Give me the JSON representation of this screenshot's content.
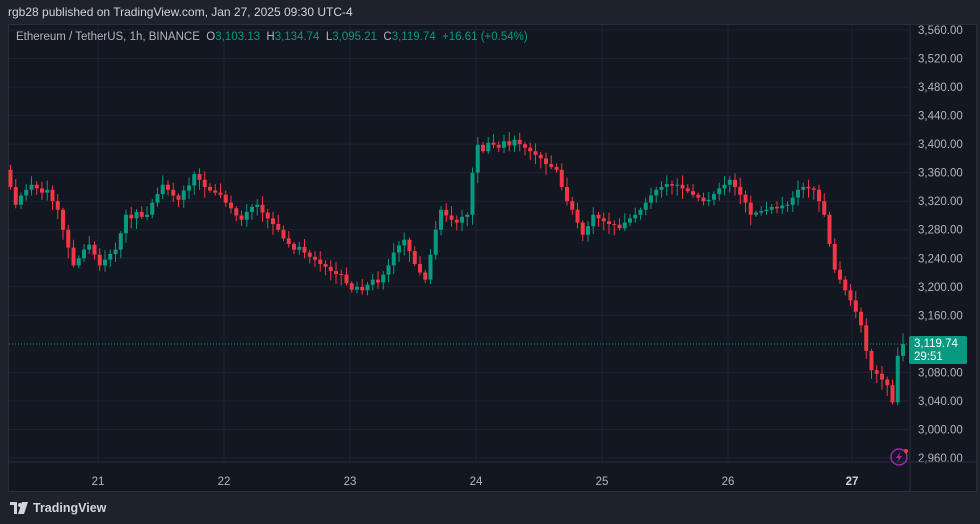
{
  "header": {
    "published": "rgb28 published on TradingView.com, Jan 27, 2025 09:30 UTC-4"
  },
  "legend": {
    "symbol": "Ethereum / TetherUS, 1h, BINANCE",
    "o_label": "O",
    "o": "3,103.13",
    "h_label": "H",
    "h": "3,134.74",
    "l_label": "L",
    "l": "3,095.21",
    "c_label": "C",
    "c": "3,119.74",
    "change": "+16.61 (+0.54%)"
  },
  "price_tag": {
    "price": "3,119.74",
    "countdown": "29:51"
  },
  "footer": {
    "logo_text": "TradingView"
  },
  "colors": {
    "up": "#089981",
    "down": "#f23645",
    "background": "#131722",
    "grid": "#1f2330"
  },
  "chart_data": {
    "type": "candlestick",
    "interval": "1h",
    "ylim": [
      2940,
      3580
    ],
    "y_ticks": [
      "3,560.00",
      "3,520.00",
      "3,480.00",
      "3,440.00",
      "3,400.00",
      "3,360.00",
      "3,320.00",
      "3,280.00",
      "3,240.00",
      "3,200.00",
      "3,160.00",
      "3,080.00",
      "3,040.00",
      "3,000.00",
      "2,960.00"
    ],
    "y_tick_values": [
      3560,
      3520,
      3480,
      3440,
      3400,
      3360,
      3320,
      3280,
      3240,
      3200,
      3160,
      3080,
      3040,
      3000,
      2960
    ],
    "x_ticks": [
      "21",
      "22",
      "23",
      "24",
      "25",
      "26",
      "27"
    ],
    "last_candle": {
      "open": 3103.13,
      "high": 3134.74,
      "low": 3095.21,
      "close": 3119.74
    },
    "closes": [
      3364,
      3340,
      3315,
      3328,
      3336,
      3343,
      3338,
      3332,
      3336,
      3320,
      3308,
      3280,
      3255,
      3230,
      3240,
      3252,
      3259,
      3245,
      3230,
      3238,
      3246,
      3252,
      3275,
      3301,
      3296,
      3305,
      3298,
      3301,
      3318,
      3330,
      3343,
      3336,
      3328,
      3322,
      3335,
      3342,
      3358,
      3350,
      3340,
      3335,
      3332,
      3329,
      3318,
      3310,
      3300,
      3294,
      3305,
      3312,
      3315,
      3304,
      3296,
      3288,
      3280,
      3268,
      3260,
      3252,
      3256,
      3248,
      3242,
      3238,
      3232,
      3228,
      3222,
      3218,
      3217,
      3205,
      3196,
      3200,
      3195,
      3203,
      3210,
      3206,
      3217,
      3230,
      3248,
      3258,
      3266,
      3250,
      3232,
      3220,
      3210,
      3245,
      3280,
      3308,
      3300,
      3294,
      3290,
      3298,
      3301,
      3360,
      3399,
      3390,
      3402,
      3399,
      3395,
      3404,
      3398,
      3406,
      3400,
      3395,
      3390,
      3385,
      3380,
      3372,
      3368,
      3364,
      3340,
      3320,
      3308,
      3290,
      3273,
      3285,
      3301,
      3296,
      3292,
      3288,
      3287,
      3282,
      3290,
      3296,
      3301,
      3308,
      3318,
      3328,
      3336,
      3340,
      3344,
      3342,
      3343,
      3338,
      3334,
      3329,
      3325,
      3320,
      3322,
      3330,
      3338,
      3343,
      3350,
      3340,
      3329,
      3318,
      3301,
      3304,
      3306,
      3308,
      3312,
      3310,
      3314,
      3315,
      3325,
      3336,
      3340,
      3338,
      3336,
      3320,
      3301,
      3260,
      3224,
      3210,
      3195,
      3181,
      3165,
      3146,
      3110,
      3083,
      3078,
      3070,
      3062,
      3038,
      3103.13,
      3119.74
    ]
  }
}
